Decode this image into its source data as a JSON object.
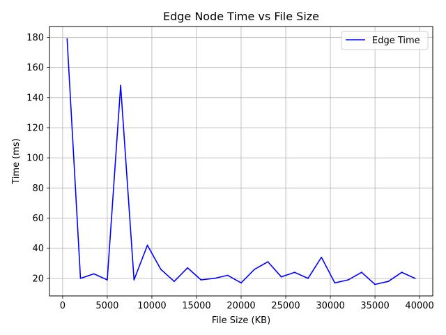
{
  "chart_data": {
    "type": "line",
    "title": "Edge Node Time vs File Size",
    "xlabel": "File Size (KB)",
    "ylabel": "Time (ms)",
    "xlim": [
      -1475,
      41475
    ],
    "ylim": [
      8.35,
      187.15
    ],
    "xticks": [
      0,
      5000,
      10000,
      15000,
      20000,
      25000,
      30000,
      35000,
      40000
    ],
    "yticks": [
      20,
      40,
      60,
      80,
      100,
      120,
      140,
      160,
      180
    ],
    "grid": true,
    "legend_position": "top-right",
    "series": [
      {
        "name": "Edge Time",
        "color": "#0000ff",
        "x": [
          500,
          2000,
          3500,
          5000,
          6500,
          8000,
          9500,
          11000,
          12500,
          14000,
          15500,
          17000,
          18500,
          20000,
          21500,
          23000,
          24500,
          26000,
          27500,
          29000,
          30500,
          32000,
          33500,
          35000,
          36500,
          38000,
          39500
        ],
        "y": [
          179,
          20,
          23,
          19,
          148,
          19,
          42,
          26,
          18,
          27,
          19,
          20,
          22,
          17,
          26,
          31,
          21,
          24,
          20,
          34,
          17,
          19,
          24,
          16,
          18,
          24,
          20
        ]
      }
    ]
  }
}
